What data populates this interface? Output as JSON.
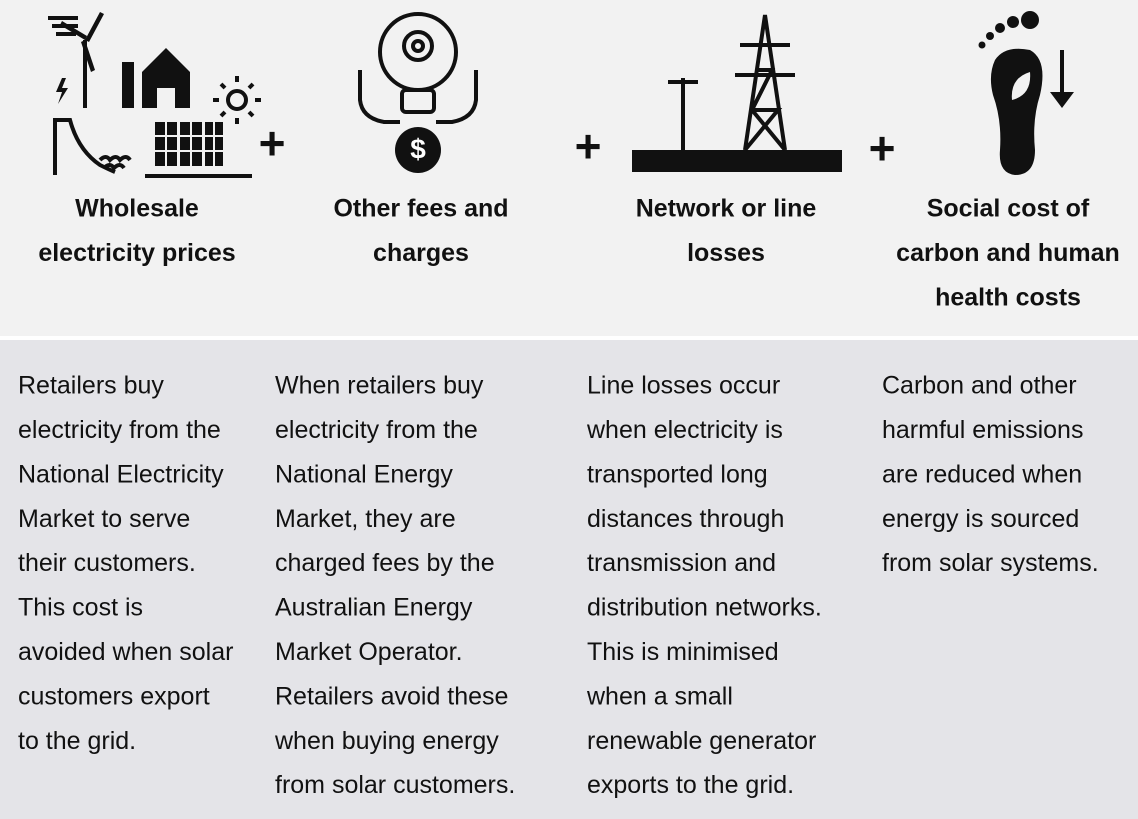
{
  "operators": [
    "+",
    "+",
    "+"
  ],
  "columns": [
    {
      "title": [
        "Wholesale",
        "electricity prices"
      ],
      "description": [
        "Retailers buy",
        "electricity from the",
        "National Electricity",
        "Market to serve",
        "their customers.",
        "This cost is",
        "avoided when solar",
        "customers export",
        "to the grid."
      ]
    },
    {
      "title": [
        "Other fees and",
        "charges"
      ],
      "description": [
        "When retailers buy",
        "electricity from the",
        "National Energy",
        "Market, they are",
        "charged fees by the",
        "Australian Energy",
        "Market Operator.",
        "Retailers avoid these",
        "when buying energy",
        "from solar customers."
      ]
    },
    {
      "title": [
        "Network or line",
        "losses"
      ],
      "description": [
        "Line losses occur",
        "when electricity is",
        "transported long",
        "distances through",
        "transmission and",
        "distribution networks.",
        "This is minimised",
        "when a small",
        "renewable generator",
        "exports to the grid."
      ]
    },
    {
      "title": [
        "Social cost of",
        "carbon and human",
        "health costs"
      ],
      "description": [
        "Carbon and other",
        "harmful emissions",
        "are reduced when",
        "energy is sourced",
        "from solar systems."
      ]
    }
  ]
}
